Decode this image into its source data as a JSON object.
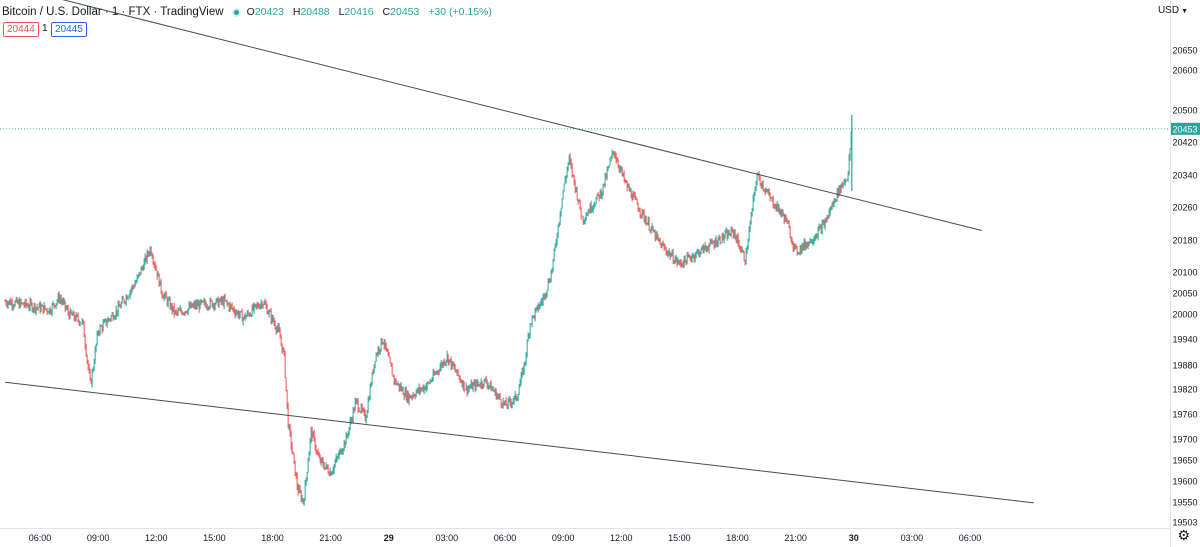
{
  "header": {
    "symbol": "Bitcoin / U.S. Dollar · 1 · FTX · TradingView",
    "ohlc": {
      "open_label": "O",
      "open": "20423",
      "high_label": "H",
      "high": "20488",
      "low_label": "L",
      "low": "20416",
      "close_label": "C",
      "close": "20453",
      "change": "+30 (+0.15%)"
    },
    "sell_price": "20444",
    "quantity": "1",
    "buy_price": "20445"
  },
  "currency": "USD",
  "colors": {
    "up": "#26a69a",
    "down": "#ef5350",
    "trendline": "#4a4a4a",
    "price_line": "#26a69a",
    "axis_text": "#131722"
  },
  "icons": {
    "status": "status-dot-icon",
    "settings": "gear-icon",
    "dropdown": "caret-down-icon"
  },
  "chart_data": {
    "type": "candlestick",
    "title": "Bitcoin / U.S. Dollar · 1 · FTX · TradingView",
    "last_price": 20453,
    "y_ticks": [
      20650,
      20600,
      20500,
      20420,
      20340,
      20260,
      20180,
      20100,
      20050,
      20000,
      19940,
      19880,
      19820,
      19760,
      19700,
      19650,
      19600,
      19550,
      19503
    ],
    "x_ticks": [
      "06:00",
      "09:00",
      "12:00",
      "15:00",
      "18:00",
      "21:00",
      "29",
      "03:00",
      "06:00",
      "09:00",
      "12:00",
      "15:00",
      "18:00",
      "21:00",
      "30",
      "03:00",
      "06:00"
    ],
    "x_tick_hours": [
      6,
      9,
      12,
      15,
      18,
      21,
      24,
      27,
      30,
      33,
      36,
      39,
      42,
      45,
      48,
      51,
      54
    ],
    "x_range_hours": [
      4.2,
      57.3
    ],
    "price_path": [
      [
        4.2,
        20030
      ],
      [
        5.5,
        20020
      ],
      [
        6.5,
        20010
      ],
      [
        7.0,
        20040
      ],
      [
        7.5,
        20000
      ],
      [
        8.2,
        19980
      ],
      [
        8.6,
        19830
      ],
      [
        9.0,
        19960
      ],
      [
        10.0,
        20010
      ],
      [
        11.0,
        20080
      ],
      [
        11.7,
        20160
      ],
      [
        12.3,
        20050
      ],
      [
        13.0,
        20000
      ],
      [
        14.0,
        20020
      ],
      [
        15.5,
        20030
      ],
      [
        16.5,
        19990
      ],
      [
        17.5,
        20030
      ],
      [
        18.3,
        19960
      ],
      [
        18.6,
        19900
      ],
      [
        18.8,
        19740
      ],
      [
        19.3,
        19580
      ],
      [
        19.6,
        19550
      ],
      [
        20.0,
        19720
      ],
      [
        20.4,
        19650
      ],
      [
        21.0,
        19620
      ],
      [
        21.8,
        19700
      ],
      [
        22.3,
        19790
      ],
      [
        22.8,
        19750
      ],
      [
        23.3,
        19900
      ],
      [
        23.7,
        19940
      ],
      [
        24.3,
        19840
      ],
      [
        25.0,
        19800
      ],
      [
        26.0,
        19830
      ],
      [
        27.0,
        19900
      ],
      [
        28.0,
        19820
      ],
      [
        29.0,
        19840
      ],
      [
        30.0,
        19780
      ],
      [
        30.6,
        19800
      ],
      [
        31.0,
        19880
      ],
      [
        31.3,
        19980
      ],
      [
        32.0,
        20040
      ],
      [
        32.4,
        20100
      ],
      [
        33.0,
        20300
      ],
      [
        33.3,
        20380
      ],
      [
        34.0,
        20230
      ],
      [
        35.0,
        20300
      ],
      [
        35.6,
        20400
      ],
      [
        36.2,
        20320
      ],
      [
        37.0,
        20250
      ],
      [
        38.0,
        20170
      ],
      [
        39.0,
        20120
      ],
      [
        40.0,
        20150
      ],
      [
        41.0,
        20180
      ],
      [
        41.8,
        20200
      ],
      [
        42.4,
        20130
      ],
      [
        43.0,
        20340
      ],
      [
        43.7,
        20280
      ],
      [
        44.5,
        20230
      ],
      [
        45.0,
        20150
      ],
      [
        45.8,
        20180
      ],
      [
        46.5,
        20220
      ],
      [
        47.2,
        20300
      ],
      [
        47.7,
        20340
      ],
      [
        47.9,
        20453
      ]
    ],
    "trendlines": [
      {
        "name": "upper",
        "from": [
          4.2,
          20812
        ],
        "to": [
          54.6,
          20203
        ]
      },
      {
        "name": "lower",
        "from": [
          4.2,
          19837
        ],
        "to": [
          57.3,
          19548
        ]
      }
    ],
    "grid": false,
    "legend": "none"
  }
}
